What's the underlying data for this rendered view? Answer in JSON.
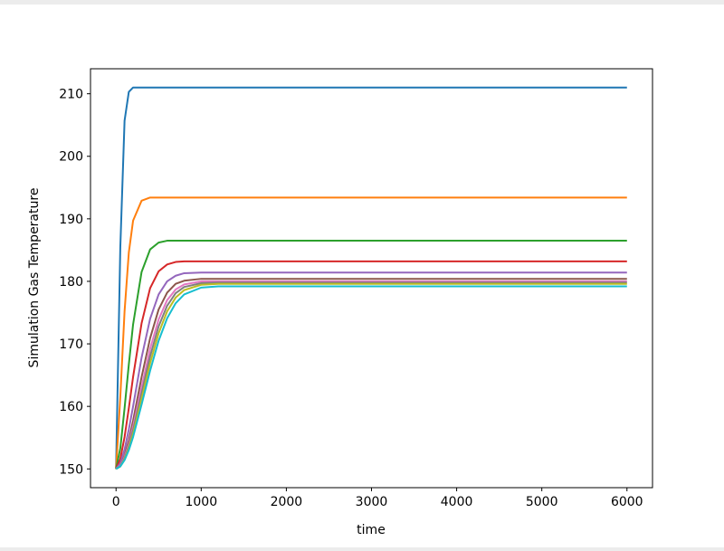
{
  "chart_data": {
    "type": "line",
    "title": "",
    "xlabel": "time",
    "ylabel": "Simulation Gas Temperature",
    "xlim": [
      -300,
      6300
    ],
    "ylim": [
      147,
      214
    ],
    "xticks": [
      0,
      1000,
      2000,
      3000,
      4000,
      5000,
      6000
    ],
    "yticks": [
      150,
      160,
      170,
      180,
      190,
      200,
      210
    ],
    "grid": false,
    "x": [
      0,
      50,
      100,
      150,
      200,
      300,
      400,
      500,
      600,
      700,
      800,
      1000,
      1200,
      6000
    ],
    "series": [
      {
        "color": "#1f77b4",
        "values": [
          150,
          185.4,
          205.7,
          210.3,
          211.0,
          211.0,
          211.0,
          211.0,
          211.0,
          211.0,
          211.0,
          211.0,
          211.0,
          211.0
        ]
      },
      {
        "color": "#ff7f0e",
        "values": [
          150,
          161.5,
          175.2,
          184.6,
          189.7,
          192.9,
          193.4,
          193.4,
          193.4,
          193.4,
          193.4,
          193.4,
          193.4,
          193.4
        ]
      },
      {
        "color": "#2ca02c",
        "values": [
          150,
          153.3,
          159.7,
          166.7,
          173.1,
          181.5,
          185.1,
          186.2,
          186.5,
          186.5,
          186.5,
          186.5,
          186.5,
          186.5
        ]
      },
      {
        "color": "#d62728",
        "values": [
          150,
          151.6,
          155.1,
          159.7,
          164.7,
          173.3,
          178.9,
          181.6,
          182.7,
          183.1,
          183.2,
          183.2,
          183.2,
          183.2
        ]
      },
      {
        "color": "#9467bd",
        "values": [
          150,
          150.9,
          153.1,
          156.3,
          160.0,
          167.8,
          174.0,
          177.9,
          180.0,
          180.9,
          181.3,
          181.4,
          181.4,
          181.4
        ]
      },
      {
        "color": "#8c564b",
        "values": [
          150,
          150.5,
          152.1,
          154.6,
          157.7,
          164.7,
          170.9,
          175.5,
          178.2,
          179.6,
          180.1,
          180.4,
          180.4,
          180.4
        ]
      },
      {
        "color": "#e377c2",
        "values": [
          150,
          150.5,
          151.9,
          154.0,
          156.8,
          163.1,
          169.2,
          173.9,
          177.0,
          178.7,
          179.5,
          180.0,
          180.0,
          180.0
        ]
      },
      {
        "color": "#7f7f7f",
        "values": [
          150,
          150.4,
          151.7,
          153.6,
          156.2,
          162.1,
          168.0,
          172.8,
          176.1,
          178.1,
          179.1,
          179.7,
          179.8,
          179.8
        ]
      },
      {
        "color": "#bcbd22",
        "values": [
          150,
          150.4,
          151.5,
          153.3,
          155.6,
          161.2,
          166.9,
          171.7,
          175.2,
          177.4,
          178.6,
          179.45,
          179.6,
          179.6
        ]
      },
      {
        "color": "#17becf",
        "values": [
          150,
          150.4,
          151.4,
          153.0,
          155.1,
          160.3,
          165.7,
          170.5,
          174.1,
          176.5,
          177.9,
          179.0,
          179.2,
          179.2
        ]
      }
    ]
  }
}
